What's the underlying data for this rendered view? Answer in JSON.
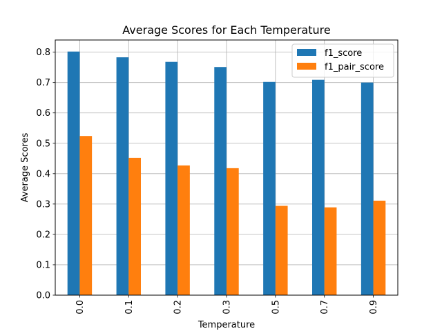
{
  "chart_data": {
    "type": "bar",
    "title": "Average Scores for Each Temperature",
    "xlabel": "Temperature",
    "ylabel": "Average Scores",
    "categories": [
      "0.0",
      "0.1",
      "0.2",
      "0.3",
      "0.5",
      "0.7",
      "0.9"
    ],
    "series": [
      {
        "name": "f1_score",
        "color": "#1f77b4",
        "values": [
          0.802,
          0.783,
          0.768,
          0.751,
          0.702,
          0.709,
          0.7
        ]
      },
      {
        "name": "f1_pair_score",
        "color": "#ff7f0e",
        "values": [
          0.524,
          0.452,
          0.427,
          0.418,
          0.294,
          0.289,
          0.311
        ]
      }
    ],
    "ylim": [
      0,
      0.84
    ],
    "yticks": [
      "0.0",
      "0.1",
      "0.2",
      "0.3",
      "0.4",
      "0.5",
      "0.6",
      "0.7",
      "0.8"
    ],
    "grid": true,
    "legend": "top-right"
  }
}
